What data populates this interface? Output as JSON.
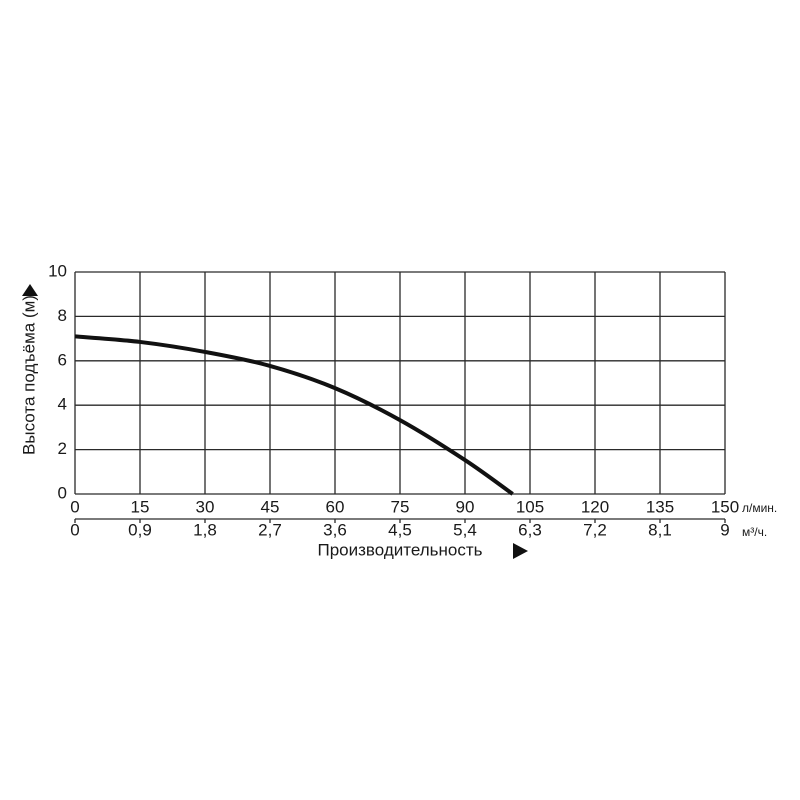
{
  "chart_data": {
    "type": "line",
    "y_label": "Высота подъёма (м)",
    "x_label": "Производительность",
    "x_unit": "л/мин.",
    "x2_unit": "м³/ч.",
    "xlim": [
      0,
      150
    ],
    "xticks": [
      0,
      15,
      30,
      45,
      60,
      75,
      90,
      105,
      120,
      135,
      150
    ],
    "x2lim": [
      0,
      9
    ],
    "x2ticks": [
      0,
      {
        "value": 0.9,
        "label": "0,9"
      },
      {
        "value": 1.8,
        "label": "1,8"
      },
      {
        "value": 2.7,
        "label": "2,7"
      },
      {
        "value": 3.6,
        "label": "3,6"
      },
      {
        "value": 4.5,
        "label": "4,5"
      },
      {
        "value": 5.4,
        "label": "5,4"
      },
      {
        "value": 6.3,
        "label": "6,3"
      },
      {
        "value": 7.2,
        "label": "7,2"
      },
      {
        "value": 8.1,
        "label": "8,1"
      },
      9
    ],
    "ylim": [
      0,
      10
    ],
    "yticks": [
      0,
      2,
      4,
      6,
      8,
      10
    ],
    "grid": true,
    "x": [
      0,
      15,
      30,
      45,
      60,
      75,
      90,
      101
    ],
    "series": [
      {
        "color": "#111111",
        "values": [
          7.1,
          6.85,
          6.4,
          5.77,
          4.77,
          3.33,
          1.53,
          0
        ]
      }
    ]
  }
}
